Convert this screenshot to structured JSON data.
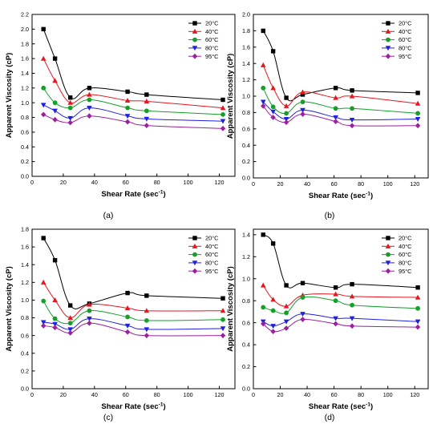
{
  "colors": {
    "20°C": "#000000",
    "40°C": "#e8141e",
    "60°C": "#16a02a",
    "80°C": "#1f1fe6",
    "95°C": "#9c1fa0"
  },
  "chart_data": [
    {
      "type": "line",
      "panel_label": "(a)",
      "xlabel": "Shear Rate (sec",
      "xlabel_sup": "-1",
      "xlabel_close": ")",
      "ylabel": "Apparent Viscosity (cP)",
      "xlim": [
        0,
        130
      ],
      "ylim": [
        0,
        2.2
      ],
      "xticks": [
        0,
        20,
        40,
        60,
        80,
        100,
        120
      ],
      "yticks": [
        0.0,
        0.2,
        0.4,
        0.6,
        0.8,
        1.0,
        1.2,
        1.4,
        1.6,
        1.8,
        2.0,
        2.2
      ],
      "ytick_labels": [
        "0.0",
        "0.2",
        "0.4",
        "0.6",
        "0.8",
        "1.0",
        "1.2",
        "1.4",
        "1.6",
        "1.8",
        "2.0",
        "2.2"
      ],
      "legend": "top-right",
      "x": [
        7.3,
        14.7,
        24.5,
        36.7,
        61.2,
        73.4,
        122.3
      ],
      "series": [
        {
          "name": "20°C",
          "marker": "square",
          "values": [
            2.0,
            1.6,
            1.07,
            1.2,
            1.15,
            1.11,
            1.04
          ]
        },
        {
          "name": "40°C",
          "marker": "triangle-up",
          "values": [
            1.6,
            1.3,
            1.0,
            1.11,
            1.03,
            1.02,
            0.93
          ]
        },
        {
          "name": "60°C",
          "marker": "circle",
          "values": [
            1.2,
            1.0,
            0.93,
            1.04,
            0.93,
            0.89,
            0.84
          ]
        },
        {
          "name": "80°C",
          "marker": "triangle-down",
          "values": [
            0.97,
            0.89,
            0.79,
            0.93,
            0.82,
            0.78,
            0.75
          ]
        },
        {
          "name": "95°C",
          "marker": "diamond",
          "values": [
            0.84,
            0.77,
            0.73,
            0.82,
            0.74,
            0.69,
            0.65
          ]
        }
      ]
    },
    {
      "type": "line",
      "panel_label": "(b)",
      "xlabel": "Shear Rate (sec",
      "xlabel_sup": "-1",
      "xlabel_close": ")",
      "ylabel": "Apparent Viscosity (cP)",
      "xlim": [
        0,
        130
      ],
      "ylim": [
        0,
        2.0
      ],
      "xticks": [
        0,
        20,
        40,
        60,
        80,
        100,
        120
      ],
      "yticks": [
        0.0,
        0.2,
        0.4,
        0.6,
        0.8,
        1.0,
        1.2,
        1.4,
        1.6,
        1.8,
        2.0
      ],
      "ytick_labels": [
        "0.0",
        "0.2",
        "0.4",
        "0.6",
        "0.8",
        "1.0",
        "1.2",
        "1.4",
        "1.6",
        "1.8",
        "2.0"
      ],
      "legend": "top-right",
      "x": [
        7.3,
        14.7,
        24.5,
        36.7,
        61.2,
        73.4,
        122.3
      ],
      "series": [
        {
          "name": "20°C",
          "marker": "square",
          "values": [
            1.8,
            1.55,
            0.98,
            1.02,
            1.1,
            1.07,
            1.04
          ]
        },
        {
          "name": "40°C",
          "marker": "triangle-up",
          "values": [
            1.38,
            1.1,
            0.88,
            1.05,
            0.98,
            1.0,
            0.91
          ]
        },
        {
          "name": "60°C",
          "marker": "circle",
          "values": [
            1.1,
            0.87,
            0.79,
            0.93,
            0.85,
            0.85,
            0.79
          ]
        },
        {
          "name": "80°C",
          "marker": "triangle-down",
          "values": [
            0.93,
            0.81,
            0.72,
            0.83,
            0.74,
            0.71,
            0.72
          ]
        },
        {
          "name": "95°C",
          "marker": "diamond",
          "values": [
            0.88,
            0.74,
            0.68,
            0.78,
            0.69,
            0.64,
            0.64
          ]
        }
      ]
    },
    {
      "type": "line",
      "panel_label": "(c)",
      "xlabel": "Shear Rate (sec",
      "xlabel_sup": "-1",
      "xlabel_close": ")",
      "ylabel": "Apparent Viscosity (cP)",
      "xlim": [
        0,
        130
      ],
      "ylim": [
        0,
        1.8
      ],
      "xticks": [
        0,
        20,
        40,
        60,
        80,
        100,
        120
      ],
      "yticks": [
        0.0,
        0.2,
        0.4,
        0.6,
        0.8,
        1.0,
        1.2,
        1.4,
        1.6,
        1.8
      ],
      "ytick_labels": [
        "0.0",
        "0.2",
        "0.4",
        "0.6",
        "0.8",
        "1.0",
        "1.2",
        "1.4",
        "1.6",
        "1.8"
      ],
      "legend": "top-right",
      "x": [
        7.3,
        14.7,
        24.5,
        36.7,
        61.2,
        73.4,
        122.3
      ],
      "series": [
        {
          "name": "20°C",
          "marker": "square",
          "values": [
            1.7,
            1.45,
            0.94,
            0.96,
            1.08,
            1.05,
            1.02
          ]
        },
        {
          "name": "40°C",
          "marker": "triangle-up",
          "values": [
            1.2,
            1.0,
            0.8,
            0.95,
            0.91,
            0.88,
            0.88
          ]
        },
        {
          "name": "60°C",
          "marker": "circle",
          "values": [
            0.99,
            0.79,
            0.74,
            0.88,
            0.81,
            0.77,
            0.78
          ]
        },
        {
          "name": "80°C",
          "marker": "triangle-down",
          "values": [
            0.75,
            0.73,
            0.67,
            0.79,
            0.71,
            0.67,
            0.68
          ]
        },
        {
          "name": "95°C",
          "marker": "diamond",
          "values": [
            0.71,
            0.69,
            0.63,
            0.74,
            0.64,
            0.6,
            0.6
          ]
        }
      ]
    },
    {
      "type": "line",
      "panel_label": "(d)",
      "xlabel": "Shear Rate (sec",
      "xlabel_sup": "-1",
      "xlabel_close": ")",
      "ylabel": "Apparent Viscosity (cP)",
      "xlim": [
        0,
        130
      ],
      "ylim": [
        0,
        1.45
      ],
      "xticks": [
        0,
        20,
        40,
        60,
        80,
        100,
        120
      ],
      "yticks": [
        0.0,
        0.2,
        0.4,
        0.6,
        0.8,
        1.0,
        1.2,
        1.4
      ],
      "ytick_labels": [
        "0.0",
        "0.2",
        "0.4",
        "0.6",
        "0.8",
        "1.0",
        "1.2",
        "1.4"
      ],
      "legend": "top-right",
      "x": [
        7.3,
        14.7,
        24.5,
        36.7,
        61.2,
        73.4,
        122.3
      ],
      "series": [
        {
          "name": "20°C",
          "marker": "square",
          "values": [
            1.4,
            1.32,
            0.94,
            0.96,
            0.92,
            0.95,
            0.92
          ]
        },
        {
          "name": "40°C",
          "marker": "triangle-up",
          "values": [
            0.94,
            0.81,
            0.75,
            0.85,
            0.86,
            0.84,
            0.83
          ]
        },
        {
          "name": "60°C",
          "marker": "circle",
          "values": [
            0.74,
            0.71,
            0.69,
            0.83,
            0.8,
            0.76,
            0.73
          ]
        },
        {
          "name": "80°C",
          "marker": "triangle-down",
          "values": [
            0.61,
            0.57,
            0.61,
            0.68,
            0.64,
            0.64,
            0.61
          ]
        },
        {
          "name": "95°C",
          "marker": "diamond",
          "values": [
            0.59,
            0.52,
            0.55,
            0.63,
            0.59,
            0.57,
            0.56
          ]
        }
      ]
    }
  ]
}
